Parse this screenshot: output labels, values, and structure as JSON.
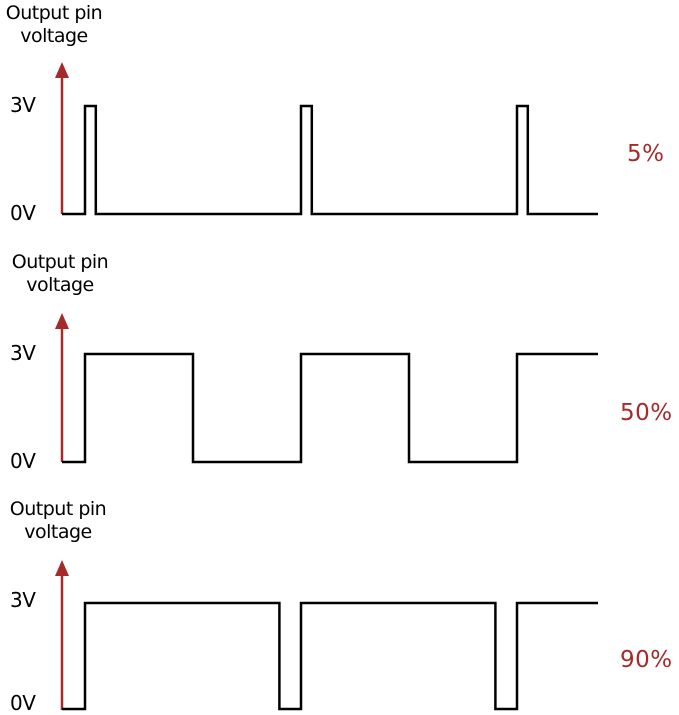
{
  "colors": {
    "axis": "#a52a2a",
    "duty_text": "#a52a2a",
    "waveform": "#000000"
  },
  "panels": [
    {
      "ylabel_line1": "Output pin",
      "ylabel_line2": "voltage",
      "high_label": "3V",
      "low_label": "0V",
      "duty_label": "5%",
      "duty_cycle": 0.05
    },
    {
      "ylabel_line1": "Output pin",
      "ylabel_line2": "voltage",
      "high_label": "3V",
      "low_label": "0V",
      "duty_label": "50%",
      "duty_cycle": 0.5
    },
    {
      "ylabel_line1": "Output pin",
      "ylabel_line2": "voltage",
      "high_label": "3V",
      "low_label": "0V",
      "duty_label": "90%",
      "duty_cycle": 0.9
    }
  ]
}
